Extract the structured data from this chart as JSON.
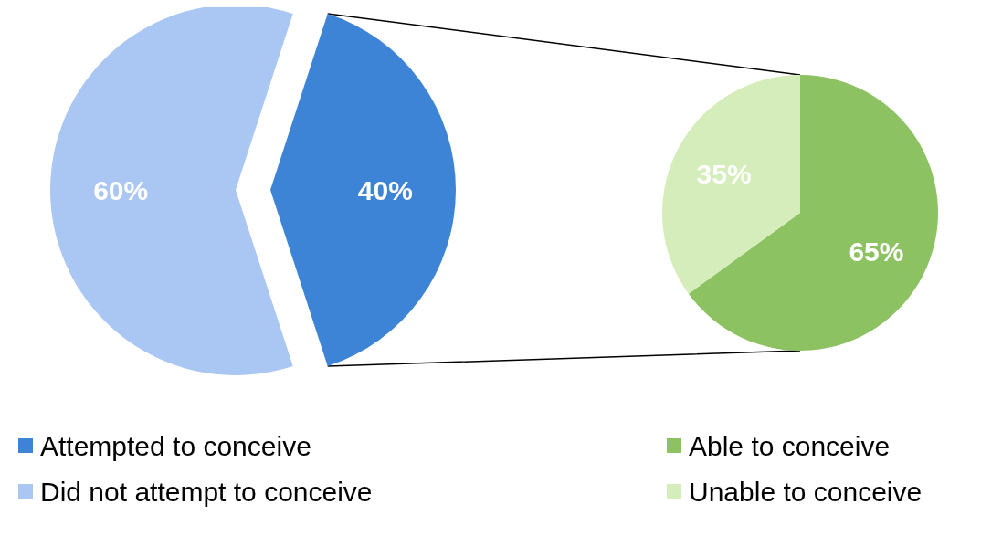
{
  "chart_data": [
    {
      "type": "pie",
      "categories": [
        "Attempted to conceive",
        "Did not attempt to conceive"
      ],
      "values": [
        40,
        60
      ],
      "colors": [
        "#3d83d6",
        "#aac6f2"
      ],
      "value_labels": [
        "40%",
        "60%"
      ],
      "legend": "bottom"
    },
    {
      "type": "pie",
      "categories": [
        "Able to conceive",
        "Unable to conceive"
      ],
      "values": [
        65,
        35
      ],
      "colors": [
        "#8dc262",
        "#d4edbb"
      ],
      "value_labels": [
        "65%",
        "35%"
      ],
      "legend": "bottom"
    }
  ]
}
